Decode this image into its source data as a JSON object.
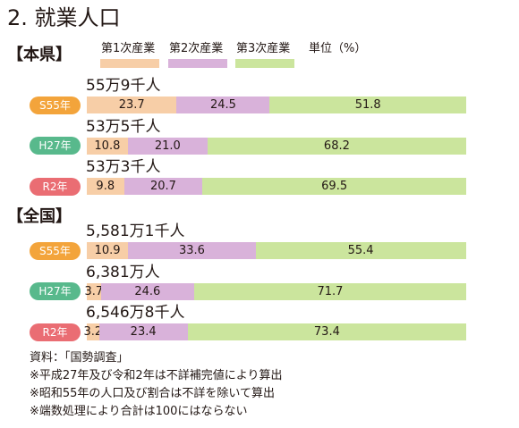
{
  "chart_data": {
    "type": "bar",
    "orientation": "horizontal",
    "stacked": true,
    "title": "2. 就業人口",
    "unit": "単位（%）",
    "legend_position": "top",
    "series": [
      {
        "name": "第1次産業",
        "color": "#f7cea7"
      },
      {
        "name": "第2次産業",
        "color": "#d9b2da"
      },
      {
        "name": "第3次産業",
        "color": "#cbe59d"
      }
    ],
    "groups": [
      {
        "title": "【本県】",
        "rows": [
          {
            "category": "S55年",
            "total": "55万9千人",
            "values": [
              23.7,
              24.5,
              51.8
            ],
            "badge_color": "#f3a43b"
          },
          {
            "category": "H27年",
            "total": "53万5千人",
            "values": [
              10.8,
              21.0,
              68.2
            ],
            "badge_color": "#58b98c"
          },
          {
            "category": "R2年",
            "total": "53万3千人",
            "values": [
              9.8,
              20.7,
              69.5
            ],
            "badge_color": "#ea6d73"
          }
        ]
      },
      {
        "title": "【全国】",
        "rows": [
          {
            "category": "S55年",
            "total": "5,581万1千人",
            "values": [
              10.9,
              33.6,
              55.4
            ],
            "badge_color": "#f3a43b"
          },
          {
            "category": "H27年",
            "total": "6,381万人",
            "values": [
              3.7,
              24.6,
              71.7
            ],
            "badge_color": "#58b98c"
          },
          {
            "category": "R2年",
            "total": "6,546万8千人",
            "values": [
              3.2,
              23.4,
              73.4
            ],
            "badge_color": "#ea6d73"
          }
        ]
      }
    ]
  },
  "notes": [
    "資料：「国勢調査」",
    "※平成27年及び令和2年は不詳補完値により算出",
    "※昭和55年の人口及び割合は不詳を除いて算出",
    "※端数処理により合計は100にはならない"
  ]
}
